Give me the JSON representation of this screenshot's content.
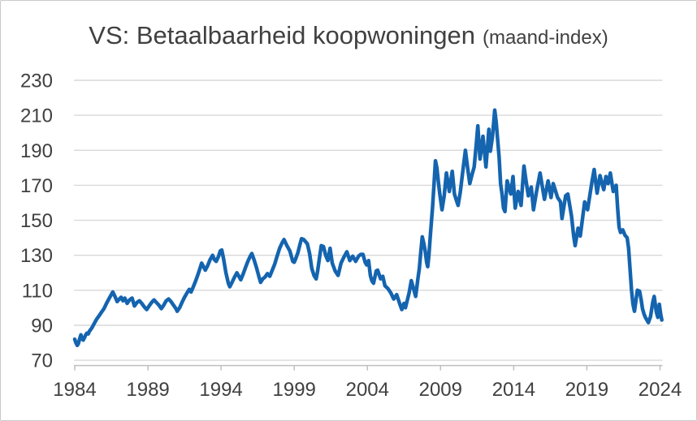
{
  "title": {
    "main": "VS: Betaalbaarheid koopwoningen",
    "suffix": "(maand-index)"
  },
  "style": {
    "line_color": "#1464AF",
    "grid_color": "#D9D9D9",
    "axis_color": "#BFBFBF",
    "text_color": "#404040",
    "border_color": "#C9C9C9",
    "background": "#FFFFFF"
  },
  "chart_data": {
    "type": "line",
    "title": "VS: Betaalbaarheid koopwoningen (maand-index)",
    "xlabel": "",
    "ylabel": "",
    "legend": "none",
    "grid": "horizontal",
    "x_ticks": [
      1984,
      1989,
      1994,
      1999,
      2004,
      2009,
      2014,
      2019,
      2024
    ],
    "y_ticks": [
      70,
      90,
      110,
      130,
      150,
      170,
      190,
      210,
      230
    ],
    "xlim": [
      1984,
      2024.3
    ],
    "ylim": [
      70,
      230
    ],
    "series": [
      {
        "name": "Betaalbaarheid koopwoningen (maand-index)",
        "color": "#1464AF",
        "points": [
          [
            1984.0,
            82
          ],
          [
            1984.08,
            80
          ],
          [
            1984.17,
            78.5
          ],
          [
            1984.25,
            79.5
          ],
          [
            1984.33,
            82
          ],
          [
            1984.42,
            84.5
          ],
          [
            1984.5,
            82.5
          ],
          [
            1984.58,
            81.5
          ],
          [
            1984.67,
            83
          ],
          [
            1984.75,
            84.5
          ],
          [
            1984.83,
            85.5
          ],
          [
            1984.92,
            85
          ],
          [
            1985.0,
            86.5
          ],
          [
            1985.17,
            88.5
          ],
          [
            1985.33,
            91
          ],
          [
            1985.5,
            93.5
          ],
          [
            1985.67,
            95.5
          ],
          [
            1985.83,
            97.5
          ],
          [
            1986.0,
            99.5
          ],
          [
            1986.17,
            102.5
          ],
          [
            1986.33,
            105
          ],
          [
            1986.5,
            107.5
          ],
          [
            1986.6,
            109
          ],
          [
            1986.75,
            106.5
          ],
          [
            1986.9,
            103.5
          ],
          [
            1987.0,
            104.5
          ],
          [
            1987.17,
            106
          ],
          [
            1987.3,
            104
          ],
          [
            1987.42,
            105.5
          ],
          [
            1987.58,
            102.5
          ],
          [
            1987.75,
            104.5
          ],
          [
            1987.92,
            105.5
          ],
          [
            1988.08,
            101
          ],
          [
            1988.25,
            103
          ],
          [
            1988.42,
            104
          ],
          [
            1988.58,
            102.5
          ],
          [
            1988.75,
            100.5
          ],
          [
            1988.92,
            99
          ],
          [
            1989.08,
            101
          ],
          [
            1989.25,
            103
          ],
          [
            1989.42,
            104.5
          ],
          [
            1989.58,
            103
          ],
          [
            1989.75,
            101.5
          ],
          [
            1989.92,
            99.5
          ],
          [
            1990.08,
            101.5
          ],
          [
            1990.25,
            104
          ],
          [
            1990.42,
            105
          ],
          [
            1990.58,
            103.5
          ],
          [
            1990.75,
            101.5
          ],
          [
            1990.92,
            99.5
          ],
          [
            1991.0,
            98
          ],
          [
            1991.17,
            100
          ],
          [
            1991.33,
            103
          ],
          [
            1991.5,
            106
          ],
          [
            1991.67,
            108.5
          ],
          [
            1991.83,
            110.5
          ],
          [
            1991.95,
            109
          ],
          [
            1992.08,
            111.5
          ],
          [
            1992.25,
            115
          ],
          [
            1992.42,
            119
          ],
          [
            1992.58,
            123
          ],
          [
            1992.67,
            125.5
          ],
          [
            1992.8,
            123.5
          ],
          [
            1992.92,
            121.5
          ],
          [
            1993.08,
            124
          ],
          [
            1993.25,
            127.5
          ],
          [
            1993.42,
            130
          ],
          [
            1993.55,
            127.5
          ],
          [
            1993.67,
            126.5
          ],
          [
            1993.83,
            129.5
          ],
          [
            1993.95,
            132.5
          ],
          [
            1994.05,
            133
          ],
          [
            1994.17,
            128
          ],
          [
            1994.33,
            120
          ],
          [
            1994.5,
            114
          ],
          [
            1994.6,
            112
          ],
          [
            1994.75,
            114.5
          ],
          [
            1994.92,
            117.5
          ],
          [
            1995.08,
            120
          ],
          [
            1995.25,
            117.5
          ],
          [
            1995.35,
            116
          ],
          [
            1995.5,
            119
          ],
          [
            1995.67,
            123
          ],
          [
            1995.83,
            126.5
          ],
          [
            1996.0,
            129.5
          ],
          [
            1996.1,
            131
          ],
          [
            1996.25,
            127.5
          ],
          [
            1996.42,
            123
          ],
          [
            1996.58,
            118
          ],
          [
            1996.7,
            114.5
          ],
          [
            1996.85,
            116.5
          ],
          [
            1997.0,
            117.5
          ],
          [
            1997.17,
            119.5
          ],
          [
            1997.33,
            118
          ],
          [
            1997.5,
            121.5
          ],
          [
            1997.67,
            125
          ],
          [
            1997.83,
            129.5
          ],
          [
            1998.0,
            134
          ],
          [
            1998.17,
            137
          ],
          [
            1998.3,
            139
          ],
          [
            1998.5,
            135.5
          ],
          [
            1998.7,
            132.5
          ],
          [
            1998.9,
            126.5
          ],
          [
            1999.0,
            126
          ],
          [
            1999.1,
            128
          ],
          [
            1999.25,
            131.5
          ],
          [
            1999.4,
            136.5
          ],
          [
            1999.5,
            139.5
          ],
          [
            1999.65,
            139
          ],
          [
            1999.8,
            137.5
          ],
          [
            1999.9,
            136.5
          ],
          [
            2000.05,
            131
          ],
          [
            2000.2,
            122.5
          ],
          [
            2000.35,
            118.5
          ],
          [
            2000.5,
            116.5
          ],
          [
            2000.6,
            121
          ],
          [
            2000.7,
            127
          ],
          [
            2000.85,
            135.5
          ],
          [
            2001.0,
            135
          ],
          [
            2001.15,
            130
          ],
          [
            2001.3,
            127
          ],
          [
            2001.45,
            134
          ],
          [
            2001.6,
            125.5
          ],
          [
            2001.8,
            121
          ],
          [
            2002.0,
            118.5
          ],
          [
            2002.2,
            125.5
          ],
          [
            2002.4,
            129
          ],
          [
            2002.6,
            132
          ],
          [
            2002.8,
            127
          ],
          [
            2003.0,
            129.5
          ],
          [
            2003.2,
            126.5
          ],
          [
            2003.4,
            129.5
          ],
          [
            2003.55,
            130.5
          ],
          [
            2003.7,
            130.5
          ],
          [
            2003.85,
            126
          ],
          [
            2003.95,
            124.5
          ],
          [
            2004.08,
            127
          ],
          [
            2004.2,
            118.5
          ],
          [
            2004.3,
            115.5
          ],
          [
            2004.42,
            114
          ],
          [
            2004.6,
            121
          ],
          [
            2004.7,
            121.5
          ],
          [
            2004.9,
            116.5
          ],
          [
            2005.05,
            118
          ],
          [
            2005.2,
            112.5
          ],
          [
            2005.4,
            111
          ],
          [
            2005.6,
            108.5
          ],
          [
            2005.8,
            105
          ],
          [
            2006.0,
            107.5
          ],
          [
            2006.2,
            102.5
          ],
          [
            2006.35,
            99
          ],
          [
            2006.5,
            102.5
          ],
          [
            2006.6,
            100
          ],
          [
            2006.85,
            108.5
          ],
          [
            2007.0,
            115.5
          ],
          [
            2007.2,
            109.5
          ],
          [
            2007.3,
            106.5
          ],
          [
            2007.45,
            116.5
          ],
          [
            2007.55,
            122.5
          ],
          [
            2007.65,
            132
          ],
          [
            2007.75,
            140.5
          ],
          [
            2007.85,
            137
          ],
          [
            2007.95,
            132.5
          ],
          [
            2008.05,
            126
          ],
          [
            2008.12,
            123.5
          ],
          [
            2008.2,
            129.5
          ],
          [
            2008.3,
            141
          ],
          [
            2008.45,
            157
          ],
          [
            2008.55,
            170
          ],
          [
            2008.65,
            184
          ],
          [
            2008.75,
            180
          ],
          [
            2008.85,
            172
          ],
          [
            2008.95,
            165
          ],
          [
            2009.1,
            156
          ],
          [
            2009.25,
            164
          ],
          [
            2009.4,
            177
          ],
          [
            2009.5,
            172
          ],
          [
            2009.6,
            166.5
          ],
          [
            2009.8,
            178
          ],
          [
            2009.95,
            165
          ],
          [
            2010.1,
            161
          ],
          [
            2010.2,
            158.5
          ],
          [
            2010.35,
            166
          ],
          [
            2010.5,
            176.5
          ],
          [
            2010.7,
            190
          ],
          [
            2010.85,
            180
          ],
          [
            2011.0,
            171
          ],
          [
            2011.15,
            176
          ],
          [
            2011.3,
            180.5
          ],
          [
            2011.45,
            194
          ],
          [
            2011.55,
            204
          ],
          [
            2011.7,
            185
          ],
          [
            2011.9,
            198
          ],
          [
            2012.1,
            180.5
          ],
          [
            2012.3,
            202
          ],
          [
            2012.4,
            189.5
          ],
          [
            2012.55,
            198
          ],
          [
            2012.7,
            213
          ],
          [
            2012.8,
            206
          ],
          [
            2012.9,
            196
          ],
          [
            2013.0,
            186
          ],
          [
            2013.1,
            171
          ],
          [
            2013.2,
            165
          ],
          [
            2013.3,
            157
          ],
          [
            2013.4,
            155
          ],
          [
            2013.55,
            172.5
          ],
          [
            2013.8,
            165
          ],
          [
            2013.95,
            175
          ],
          [
            2014.1,
            157
          ],
          [
            2014.3,
            166.5
          ],
          [
            2014.5,
            158.5
          ],
          [
            2014.7,
            181
          ],
          [
            2014.85,
            172
          ],
          [
            2015.0,
            164
          ],
          [
            2015.2,
            169
          ],
          [
            2015.35,
            156
          ],
          [
            2015.55,
            166
          ],
          [
            2015.8,
            177
          ],
          [
            2016.1,
            162
          ],
          [
            2016.35,
            172.5
          ],
          [
            2016.55,
            163
          ],
          [
            2016.7,
            171
          ],
          [
            2017.0,
            163
          ],
          [
            2017.2,
            160.5
          ],
          [
            2017.3,
            151
          ],
          [
            2017.55,
            164
          ],
          [
            2017.7,
            165
          ],
          [
            2017.95,
            152.5
          ],
          [
            2018.1,
            141
          ],
          [
            2018.2,
            135.5
          ],
          [
            2018.4,
            145.5
          ],
          [
            2018.55,
            141
          ],
          [
            2018.85,
            160.5
          ],
          [
            2019.05,
            156
          ],
          [
            2019.35,
            172
          ],
          [
            2019.5,
            179
          ],
          [
            2019.7,
            165.5
          ],
          [
            2019.9,
            175.5
          ],
          [
            2020.15,
            167.5
          ],
          [
            2020.3,
            175
          ],
          [
            2020.45,
            171
          ],
          [
            2020.6,
            177
          ],
          [
            2020.8,
            166.5
          ],
          [
            2021.0,
            170
          ],
          [
            2021.1,
            157
          ],
          [
            2021.2,
            146
          ],
          [
            2021.3,
            143
          ],
          [
            2021.45,
            144.5
          ],
          [
            2021.6,
            141.5
          ],
          [
            2021.75,
            140
          ],
          [
            2021.85,
            134
          ],
          [
            2021.95,
            122
          ],
          [
            2022.05,
            110
          ],
          [
            2022.15,
            102
          ],
          [
            2022.25,
            98
          ],
          [
            2022.35,
            104
          ],
          [
            2022.45,
            110
          ],
          [
            2022.6,
            109.5
          ],
          [
            2022.7,
            105
          ],
          [
            2022.8,
            99.5
          ],
          [
            2022.9,
            96.5
          ],
          [
            2023.0,
            94.5
          ],
          [
            2023.1,
            93
          ],
          [
            2023.2,
            91.5
          ],
          [
            2023.35,
            95
          ],
          [
            2023.5,
            103
          ],
          [
            2023.6,
            106.5
          ],
          [
            2023.75,
            97.5
          ],
          [
            2023.85,
            94.5
          ],
          [
            2023.95,
            102
          ],
          [
            2024.05,
            96
          ],
          [
            2024.12,
            93
          ]
        ]
      }
    ]
  }
}
